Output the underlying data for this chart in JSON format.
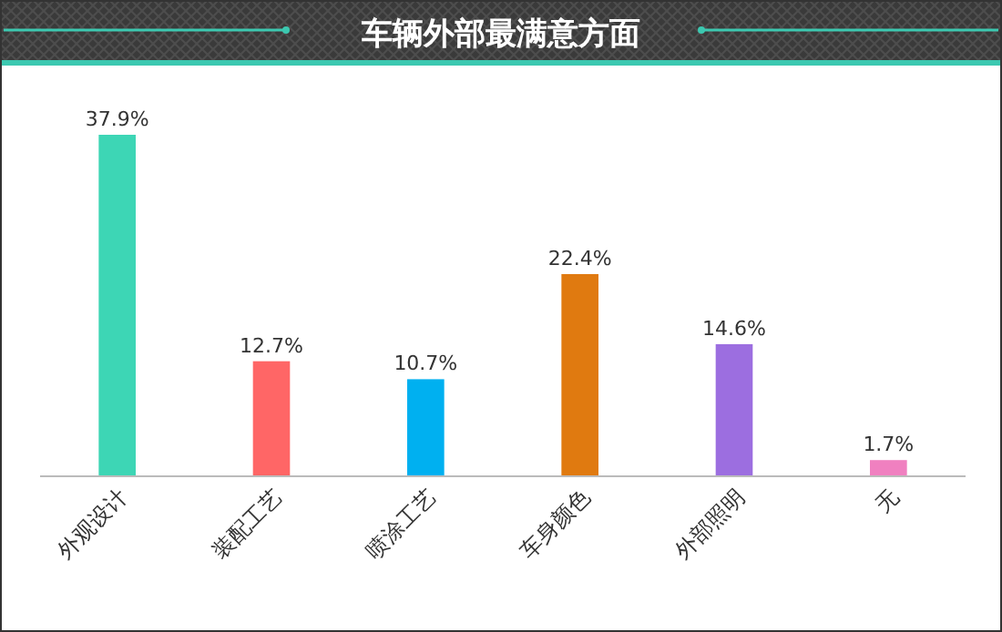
{
  "chart_data": {
    "type": "bar",
    "title": "车辆外部最满意方面",
    "categories": [
      "外观设计",
      "装配工艺",
      "喷涂工艺",
      "车身颜色",
      "外部照明",
      "无"
    ],
    "values": [
      37.9,
      12.7,
      10.7,
      22.4,
      14.6,
      1.7
    ],
    "colors": [
      "#3dd6b5",
      "#ff6666",
      "#00b0f0",
      "#e07a10",
      "#9c6ee0",
      "#f080c0"
    ],
    "value_labels": [
      "37.9%",
      "12.7%",
      "10.7%",
      "22.4%",
      "14.6%",
      "1.7%"
    ]
  }
}
